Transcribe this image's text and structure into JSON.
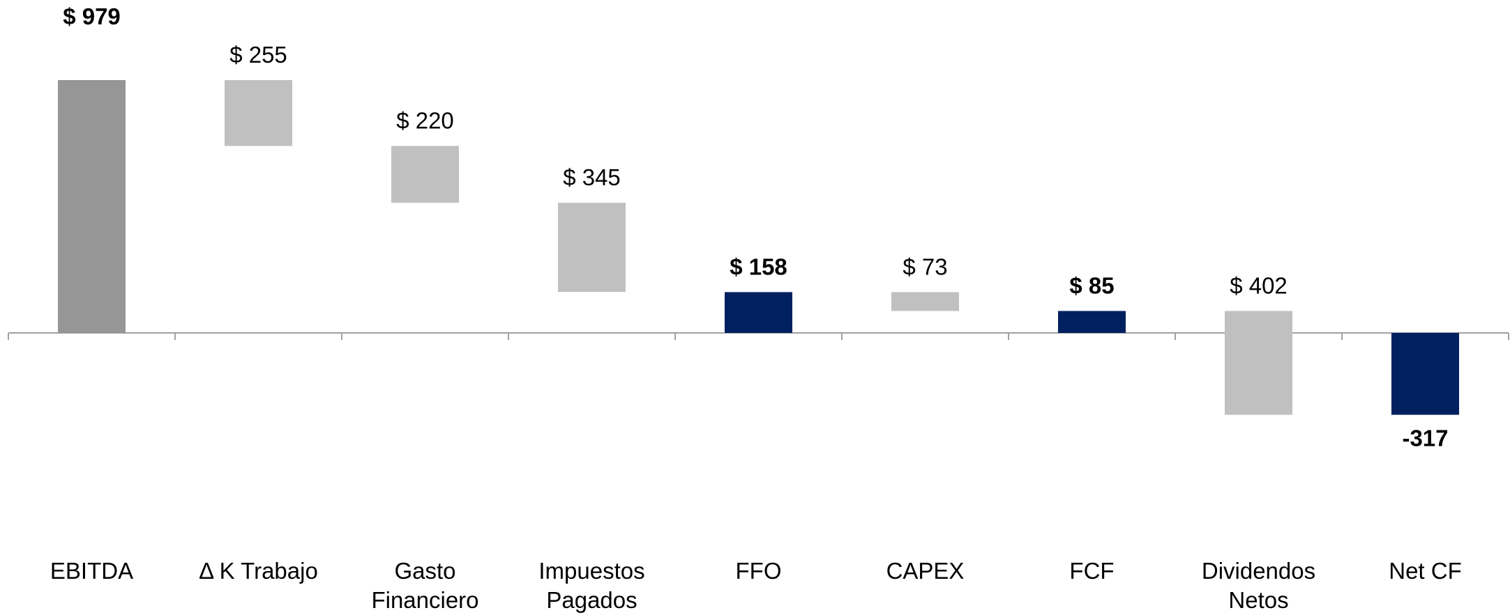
{
  "chart_data": {
    "type": "waterfall",
    "categories": [
      [
        "EBITDA"
      ],
      [
        "Δ K Trabajo"
      ],
      [
        "Gasto",
        "Financiero"
      ],
      [
        "Impuestos",
        "Pagados"
      ],
      [
        "FFO"
      ],
      [
        "CAPEX"
      ],
      [
        "FCF"
      ],
      [
        "Dividendos",
        "Netos"
      ],
      [
        "Net CF"
      ]
    ],
    "values": [
      979,
      -255,
      -220,
      -345,
      158,
      -73,
      85,
      -402,
      -317
    ],
    "value_labels": [
      "$ 979",
      "$ 255",
      "$ 220",
      "$ 345",
      "$ 158",
      "$ 73",
      "$ 85",
      "$ 402",
      "-317"
    ],
    "measures": [
      "total",
      "relative",
      "relative",
      "relative",
      "total",
      "relative",
      "total",
      "relative",
      "total"
    ],
    "colors": [
      "#969696",
      "#c0c0c0",
      "#c0c0c0",
      "#c0c0c0",
      "#002060",
      "#c0c0c0",
      "#002060",
      "#c0c0c0",
      "#002060"
    ],
    "bold_labels": [
      true,
      false,
      false,
      false,
      true,
      false,
      true,
      false,
      true
    ]
  }
}
